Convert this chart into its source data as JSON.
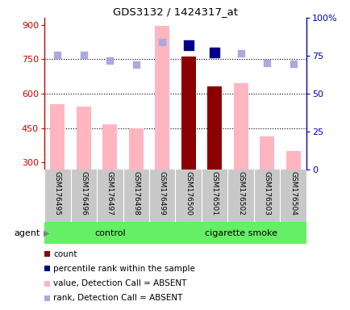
{
  "title": "GDS3132 / 1424317_at",
  "samples": [
    "GSM176495",
    "GSM176496",
    "GSM176497",
    "GSM176498",
    "GSM176499",
    "GSM176500",
    "GSM176501",
    "GSM176502",
    "GSM176503",
    "GSM176504"
  ],
  "n_control": 5,
  "n_smoke": 5,
  "bar_values": [
    555,
    545,
    465,
    450,
    895,
    760,
    630,
    645,
    415,
    350
  ],
  "bar_colors": [
    "#FFB6C1",
    "#FFB6C1",
    "#FFB6C1",
    "#FFB6C1",
    "#FFB6C1",
    "#8B0000",
    "#8B0000",
    "#FFB6C1",
    "#FFB6C1",
    "#FFB6C1"
  ],
  "rank_values_left": [
    770,
    770,
    745,
    725,
    825,
    810,
    780,
    775,
    735,
    730
  ],
  "rank_colors": [
    "#AAAADD",
    "#AAAADD",
    "#AAAADD",
    "#AAAADD",
    "#AAAADD",
    "#00008B",
    "#00008B",
    "#AAAADD",
    "#AAAADD",
    "#AAAADD"
  ],
  "rank_marker_sizes": [
    36,
    36,
    36,
    36,
    36,
    64,
    64,
    36,
    36,
    36
  ],
  "ylim_left": [
    270,
    930
  ],
  "ylim_right": [
    0,
    100
  ],
  "yticks_left": [
    300,
    450,
    600,
    750,
    900
  ],
  "yticks_right": [
    0,
    25,
    50,
    75,
    100
  ],
  "hlines": [
    450,
    600,
    750
  ],
  "ylabel_left_color": "#CC0000",
  "ylabel_right_color": "#0000BB",
  "agent_label": "agent",
  "control_label": "control",
  "smoke_label": "cigarette smoke",
  "legend_items": [
    {
      "color": "#8B0000",
      "label": "count"
    },
    {
      "color": "#00008B",
      "label": "percentile rank within the sample"
    },
    {
      "color": "#FFB6C1",
      "label": "value, Detection Call = ABSENT"
    },
    {
      "color": "#AAAADD",
      "label": "rank, Detection Call = ABSENT"
    }
  ],
  "bar_width": 0.55,
  "green_bg": "#66EE66",
  "tick_area_bg": "#C8C8C8",
  "plot_bg": "#FFFFFF",
  "plot_border_color": "#000000"
}
